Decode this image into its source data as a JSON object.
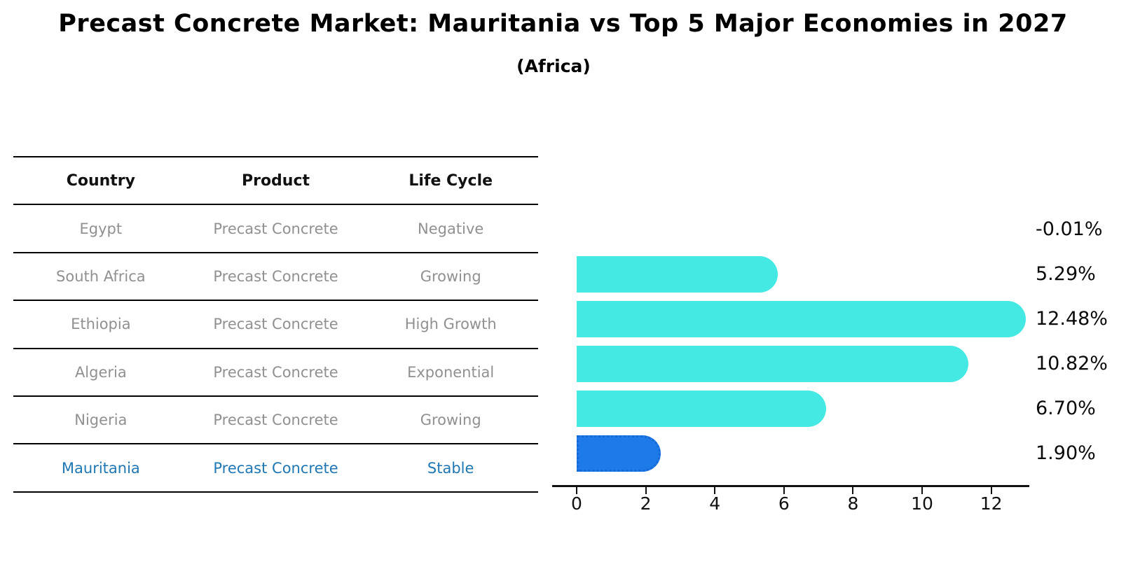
{
  "title": "Precast Concrete Market: Mauritania vs Top 5 Major Economies in 2027",
  "subtitle": "(Africa)",
  "table": {
    "headers": [
      "Country",
      "Product",
      "Life Cycle"
    ],
    "rows": [
      {
        "country": "Egypt",
        "product": "Precast Concrete",
        "life_cycle": "Negative",
        "highlight": false
      },
      {
        "country": "South Africa",
        "product": "Precast Concrete",
        "life_cycle": "Growing",
        "highlight": false
      },
      {
        "country": "Ethiopia",
        "product": "Precast Concrete",
        "life_cycle": "High Growth",
        "highlight": false
      },
      {
        "country": "Algeria",
        "product": "Precast Concrete",
        "life_cycle": "Exponential",
        "highlight": false
      },
      {
        "country": "Nigeria",
        "product": "Precast Concrete",
        "life_cycle": "Growing",
        "highlight": true
      }
    ],
    "last_row": {
      "country": "Mauritania",
      "product": "Precast Concrete",
      "life_cycle": "Stable"
    }
  },
  "chart_data": {
    "type": "bar",
    "orientation": "horizontal",
    "categories": [
      "Egypt",
      "South Africa",
      "Ethiopia",
      "Algeria",
      "Nigeria",
      "Mauritania"
    ],
    "values": [
      -0.01,
      5.29,
      12.48,
      10.82,
      6.7,
      1.9
    ],
    "value_labels": [
      "-0.01%",
      "5.29%",
      "12.48%",
      "10.82%",
      "6.70%",
      "1.90%"
    ],
    "x_ticks": [
      0,
      2,
      4,
      6,
      8,
      10,
      12
    ],
    "xlim": [
      0,
      13.2
    ],
    "grid": false,
    "legend": false,
    "bar_color": "#45E9E4",
    "highlight_color": "#1E7AE8",
    "highlight_index": 5,
    "highlight_text_color": "#1f77b4"
  }
}
